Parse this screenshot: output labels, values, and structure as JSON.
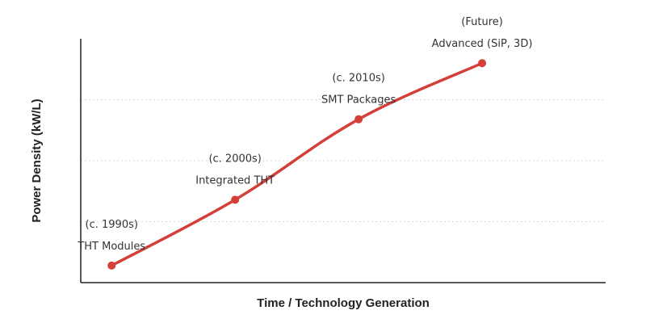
{
  "chart_data": {
    "type": "line",
    "title": "",
    "xlabel": "Time / Technology Generation",
    "ylabel": "Power Density (kW/L)",
    "grid": true,
    "series": [
      {
        "color": "#d43f3a",
        "points": [
          {
            "x": 1990,
            "y": 0.7,
            "period": "(c. 1990s)",
            "label": "THT Modules"
          },
          {
            "x": 2000,
            "y": 3.4,
            "period": "(c. 2000s)",
            "label": "Integrated THT"
          },
          {
            "x": 2010,
            "y": 6.7,
            "period": "(c. 2010s)",
            "label": "SMT Packages"
          },
          {
            "x": 2020,
            "y": 9.0,
            "period": "(Future)",
            "label": "Advanced (SiP, 3D)"
          }
        ]
      }
    ],
    "ylim": [
      0,
      10
    ],
    "xlim": [
      1987.5,
      2030
    ],
    "yticks": [
      2.5,
      5,
      7.5
    ],
    "colors": {
      "line": "#d43f3a",
      "axis": "#222222",
      "grid": "#d8d8d8",
      "text": "#333333"
    }
  }
}
